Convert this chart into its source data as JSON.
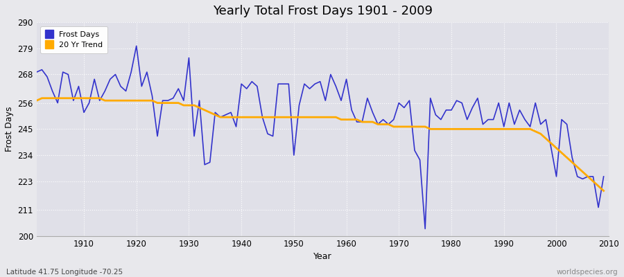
{
  "title": "Yearly Total Frost Days 1901 - 2009",
  "xlabel": "Year",
  "ylabel": "Frost Days",
  "footnote_left": "Latitude 41.75 Longitude -70.25",
  "footnote_right": "worldspecies.org",
  "ylim": [
    200,
    290
  ],
  "yticks": [
    200,
    211,
    223,
    234,
    245,
    256,
    268,
    279,
    290
  ],
  "line_color": "#3333cc",
  "trend_color": "#ffaa00",
  "bg_color": "#e8e8ec",
  "plot_bg_color": "#e0e0e8",
  "grid_color": "#ffffff",
  "years": [
    1901,
    1902,
    1903,
    1904,
    1905,
    1906,
    1907,
    1908,
    1909,
    1910,
    1911,
    1912,
    1913,
    1914,
    1915,
    1916,
    1917,
    1918,
    1919,
    1920,
    1921,
    1922,
    1923,
    1924,
    1925,
    1926,
    1927,
    1928,
    1929,
    1930,
    1931,
    1932,
    1933,
    1934,
    1935,
    1936,
    1937,
    1938,
    1939,
    1940,
    1941,
    1942,
    1943,
    1944,
    1945,
    1946,
    1947,
    1948,
    1949,
    1950,
    1951,
    1952,
    1953,
    1954,
    1955,
    1956,
    1957,
    1958,
    1959,
    1960,
    1961,
    1962,
    1963,
    1964,
    1965,
    1966,
    1967,
    1968,
    1969,
    1970,
    1971,
    1972,
    1973,
    1974,
    1975,
    1976,
    1977,
    1978,
    1979,
    1980,
    1981,
    1982,
    1983,
    1984,
    1985,
    1986,
    1987,
    1988,
    1989,
    1990,
    1991,
    1992,
    1993,
    1994,
    1995,
    1996,
    1997,
    1998,
    1999,
    2000,
    2001,
    2002,
    2003,
    2004,
    2005,
    2006,
    2007,
    2008,
    2009
  ],
  "frost_days": [
    269,
    270,
    267,
    261,
    256,
    269,
    268,
    257,
    263,
    252,
    256,
    266,
    257,
    261,
    266,
    268,
    263,
    261,
    269,
    280,
    263,
    269,
    259,
    242,
    257,
    257,
    258,
    262,
    257,
    275,
    242,
    257,
    230,
    231,
    252,
    250,
    251,
    252,
    246,
    264,
    262,
    265,
    263,
    250,
    243,
    242,
    264,
    264,
    264,
    234,
    255,
    264,
    262,
    264,
    265,
    257,
    268,
    263,
    257,
    266,
    253,
    248,
    248,
    258,
    252,
    247,
    249,
    247,
    249,
    256,
    254,
    257,
    236,
    232,
    203,
    258,
    251,
    249,
    253,
    253,
    257,
    256,
    249,
    254,
    258,
    247,
    249,
    249,
    256,
    246,
    256,
    247,
    253,
    249,
    246,
    256,
    247,
    249,
    237,
    225,
    249,
    247,
    233,
    225,
    224,
    225,
    225,
    212,
    225
  ],
  "trend": [
    257,
    258,
    258,
    258,
    258,
    258,
    258,
    258,
    258,
    258,
    258,
    258,
    258,
    257,
    257,
    257,
    257,
    257,
    257,
    257,
    257,
    257,
    257,
    256,
    256,
    256,
    256,
    256,
    255,
    255,
    255,
    254,
    253,
    252,
    251,
    250,
    250,
    250,
    250,
    250,
    250,
    250,
    250,
    250,
    250,
    250,
    250,
    250,
    250,
    250,
    250,
    250,
    250,
    250,
    250,
    250,
    250,
    250,
    249,
    249,
    249,
    249,
    248,
    248,
    248,
    247,
    247,
    247,
    246,
    246,
    246,
    246,
    246,
    246,
    246,
    245,
    245,
    245,
    245,
    245,
    245,
    245,
    245,
    245,
    245,
    245,
    245,
    245,
    245,
    245,
    245,
    245,
    245,
    245,
    245,
    244,
    243,
    241,
    239,
    237,
    235,
    233,
    231,
    229,
    227,
    225,
    223,
    221,
    219
  ]
}
